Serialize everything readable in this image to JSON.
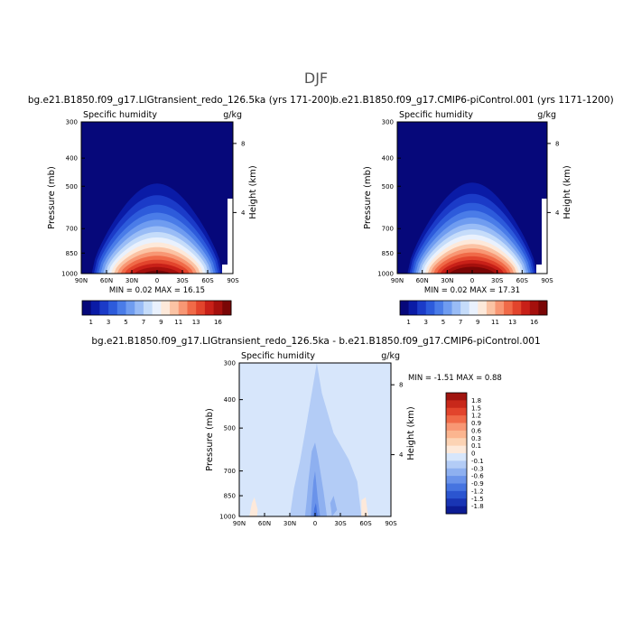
{
  "title": "DJF",
  "panels": [
    {
      "title": "bg.e21.B1850.f09_g17.LIGtransient_redo_126.5ka (yrs 171-200)",
      "left_label": "Specific humidity",
      "right_label": "g/kg",
      "ylabel": "Pressure (mb)",
      "ylabel_right": "Height (km)",
      "minmax": "MIN =    0.02   MAX =   16.15"
    },
    {
      "title": "b.e21.B1850.f09_g17.CMIP6-piControl.001 (yrs 1171-1200)",
      "left_label": "Specific humidity",
      "right_label": "g/kg",
      "ylabel": "Pressure (mb)",
      "ylabel_right": "Height (km)",
      "minmax": "MIN =    0.02   MAX =   17.31"
    },
    {
      "title": "bg.e21.B1850.f09_g17.LIGtransient_redo_126.5ka - b.e21.B1850.f09_g17.CMIP6-piControl.001",
      "left_label": "Specific humidity",
      "right_label": "g/kg",
      "ylabel": "Pressure (mb)",
      "ylabel_right": "Height (km)",
      "minmax": "MIN =   -1.51   MAX =    0.88"
    }
  ],
  "chart_data": [
    {
      "type": "heatmap",
      "title": "bg.e21.B1850.f09_g17.LIGtransient_redo_126.5ka (yrs 171-200)",
      "field": "Specific humidity",
      "units": "g/kg",
      "xlabel": "",
      "ylabel": "Pressure (mb)",
      "ylabel_right": "Height (km)",
      "x_ticks": [
        "90N",
        "60N",
        "30N",
        "0",
        "30S",
        "60S",
        "90S"
      ],
      "y_ticks": [
        300,
        400,
        500,
        700,
        850,
        1000
      ],
      "y_right_ticks": [
        4,
        8
      ],
      "y_log_scale": true,
      "xlim": [
        90,
        -90
      ],
      "ylim": [
        1000,
        300
      ],
      "min": 0.02,
      "max": 16.15,
      "peak_latitude": 0,
      "colorbar_levels": [
        "1",
        "3",
        "5",
        "7",
        "9",
        "11",
        "13",
        "16"
      ],
      "colorbar_colors": [
        "#06087a",
        "#0a1ba6",
        "#1b3bc8",
        "#2d5bdb",
        "#4a7ce8",
        "#6f9cf0",
        "#99bcf6",
        "#c5dcfa",
        "#e9f1fd",
        "#fde9da",
        "#fbc3a4",
        "#f89774",
        "#f06a48",
        "#e2442c",
        "#c82018",
        "#a5100d",
        "#7a0606"
      ]
    },
    {
      "type": "heatmap",
      "title": "b.e21.B1850.f09_g17.CMIP6-piControl.001 (yrs 1171-1200)",
      "field": "Specific humidity",
      "units": "g/kg",
      "xlabel": "",
      "ylabel": "Pressure (mb)",
      "ylabel_right": "Height (km)",
      "x_ticks": [
        "90N",
        "60N",
        "30N",
        "0",
        "30S",
        "60S",
        "90S"
      ],
      "y_ticks": [
        300,
        400,
        500,
        700,
        850,
        1000
      ],
      "y_right_ticks": [
        4,
        8
      ],
      "y_log_scale": true,
      "xlim": [
        90,
        -90
      ],
      "ylim": [
        1000,
        300
      ],
      "min": 0.02,
      "max": 17.31,
      "peak_latitude": 0,
      "colorbar_levels": [
        "1",
        "3",
        "5",
        "7",
        "9",
        "11",
        "13",
        "16"
      ],
      "colorbar_colors": [
        "#06087a",
        "#0a1ba6",
        "#1b3bc8",
        "#2d5bdb",
        "#4a7ce8",
        "#6f9cf0",
        "#99bcf6",
        "#c5dcfa",
        "#e9f1fd",
        "#fde9da",
        "#fbc3a4",
        "#f89774",
        "#f06a48",
        "#e2442c",
        "#c82018",
        "#a5100d",
        "#7a0606"
      ]
    },
    {
      "type": "heatmap",
      "title": "bg.e21.B1850.f09_g17.LIGtransient_redo_126.5ka - b.e21.B1850.f09_g17.CMIP6-piControl.001",
      "field": "Specific humidity",
      "units": "g/kg",
      "xlabel": "",
      "ylabel": "Pressure (mb)",
      "ylabel_right": "Height (km)",
      "x_ticks": [
        "90N",
        "60N",
        "30N",
        "0",
        "30S",
        "60S",
        "90S"
      ],
      "y_ticks": [
        300,
        400,
        500,
        700,
        850,
        1000
      ],
      "y_right_ticks": [
        4,
        8
      ],
      "y_log_scale": true,
      "xlim": [
        90,
        -90
      ],
      "ylim": [
        1000,
        300
      ],
      "min": -1.51,
      "max": 0.88,
      "background_level": "0 to -0.1",
      "colorbar_levels": [
        "1.8",
        "1.5",
        "1.2",
        "0.9",
        "0.6",
        "0.3",
        "0.1",
        "0",
        "-0.1",
        "-0.3",
        "-0.6",
        "-0.9",
        "-1.2",
        "-1.5",
        "-1.8"
      ],
      "colorbar_colors": [
        "#a0140f",
        "#c8281a",
        "#e2442c",
        "#f06a48",
        "#f89774",
        "#fbb58f",
        "#fcd3b4",
        "#fde9da",
        "#d7e6fb",
        "#b3ccf6",
        "#8eb0f0",
        "#6a93ea",
        "#4674e0",
        "#2b55d0",
        "#1935b4",
        "#0c1c94"
      ]
    }
  ]
}
